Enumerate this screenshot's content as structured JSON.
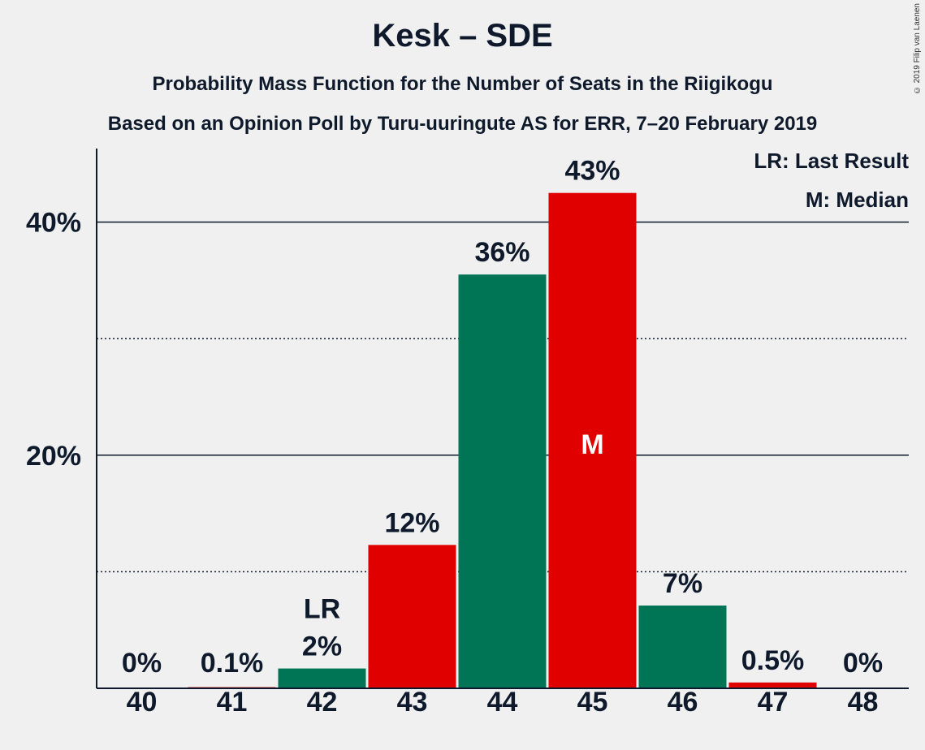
{
  "header": {
    "title": "Kesk – SDE",
    "subtitle": "Probability Mass Function for the Number of Seats in the Riigikogu",
    "source": "Based on an Opinion Poll by Turu-uuringute AS for ERR, 7–20 February 2019",
    "copyright": "© 2019 Filip van Laenen"
  },
  "legend": {
    "last_result": "LR: Last Result",
    "median": "M: Median"
  },
  "colors": {
    "green": "#007556",
    "red": "#e00000",
    "axis": "#0e1a2b"
  },
  "chart_data": {
    "type": "bar",
    "title": "Kesk – SDE",
    "categories": [
      "40",
      "41",
      "42",
      "43",
      "44",
      "45",
      "46",
      "47",
      "48"
    ],
    "values": [
      0,
      0.1,
      1.7,
      12.3,
      35.5,
      42.5,
      7.1,
      0.5,
      0
    ],
    "labels": [
      "0%",
      "0.1%",
      "2%",
      "12%",
      "36%",
      "43%",
      "7%",
      "0.5%",
      "0%"
    ],
    "bar_colors": [
      "green",
      "red",
      "green",
      "red",
      "green",
      "red",
      "green",
      "red",
      "green"
    ],
    "markers": {
      "last_result": {
        "category": "42",
        "text": "LR"
      },
      "median": {
        "category": "45",
        "text": "M"
      }
    },
    "yticks": [
      {
        "value": 20,
        "label": "20%"
      },
      {
        "value": 40,
        "label": "40%"
      }
    ],
    "minor_gridlines": [
      10,
      30
    ],
    "ylim": [
      0,
      46
    ],
    "xlabel": "",
    "ylabel": ""
  }
}
